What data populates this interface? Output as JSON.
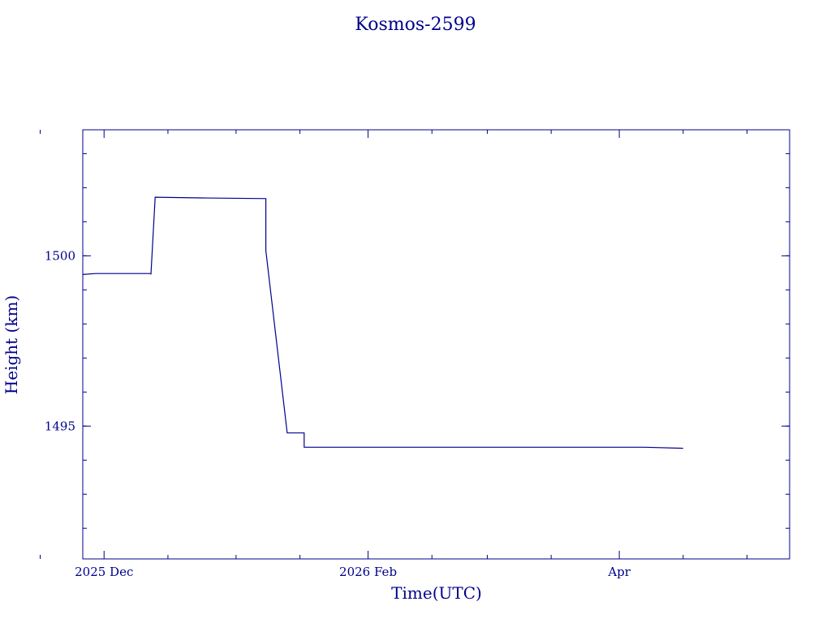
{
  "chart_data": {
    "type": "line",
    "title": "Kosmos-2599",
    "xlabel": "Time(UTC)",
    "ylabel": "Height (km)",
    "color": "#00008b",
    "x_ticks": [
      {
        "date": "2025-12-01",
        "label": "2025 Dec"
      },
      {
        "date": "2026-02-01",
        "label": "2026 Feb"
      },
      {
        "date": "2026-04-01",
        "label": "Apr"
      }
    ],
    "x_minor_ticks": [
      "2025-11-16",
      "2025-12-16",
      "2026-01-01",
      "2026-01-16",
      "2026-02-16",
      "2026-03-01",
      "2026-03-16",
      "2026-04-16",
      "2026-05-01"
    ],
    "xlim": [
      "2025-11-26",
      "2026-05-11"
    ],
    "y_ticks": [
      {
        "value": 1495,
        "label": "1495"
      },
      {
        "value": 1500,
        "label": "1500"
      }
    ],
    "y_minor_step": 1,
    "ylim": [
      1491.1,
      1503.7
    ],
    "grid": false,
    "series": [
      {
        "points": [
          [
            "2025-11-26",
            1499.45
          ],
          [
            "2025-11-29",
            1499.48
          ],
          [
            "2025-12-12",
            1499.48
          ],
          [
            "2025-12-12",
            1499.45
          ],
          [
            "2025-12-13",
            1501.72
          ],
          [
            "2025-12-24",
            1501.7
          ],
          [
            "2026-01-08",
            1501.68
          ],
          [
            "2026-01-08",
            1500.15
          ],
          [
            "2026-01-13",
            1494.8
          ],
          [
            "2026-01-17",
            1494.8
          ],
          [
            "2026-01-17",
            1494.38
          ],
          [
            "2026-04-07",
            1494.38
          ],
          [
            "2026-04-16",
            1494.35
          ]
        ]
      }
    ]
  }
}
